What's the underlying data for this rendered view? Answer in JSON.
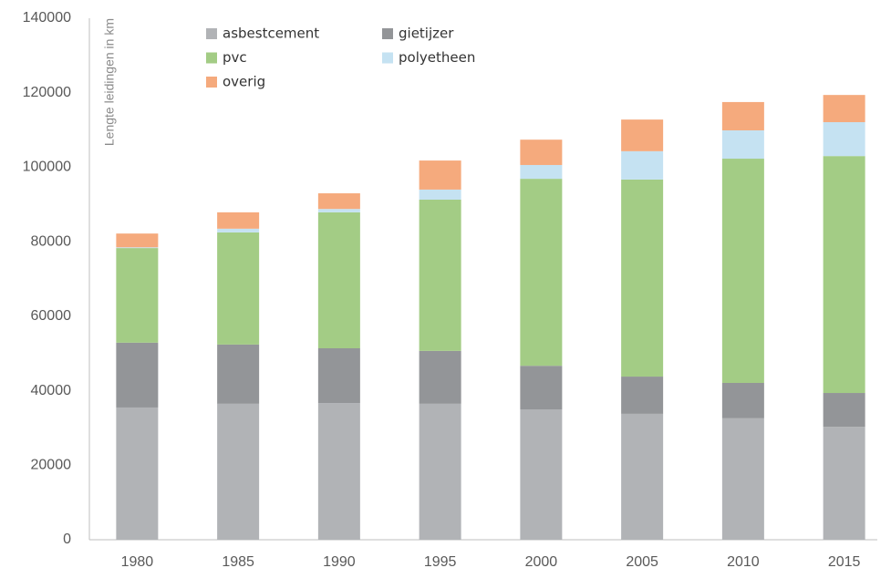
{
  "chart_data": {
    "type": "stacked_bar",
    "ylabel": "Lengte leidingen in km",
    "categories": [
      "1980",
      "1985",
      "1990",
      "1995",
      "2000",
      "2005",
      "2010",
      "2015"
    ],
    "series": [
      {
        "name": "asbestcement",
        "color": "#b1b3b6",
        "values": [
          35500,
          36500,
          36700,
          36500,
          35000,
          33800,
          32600,
          30300
        ]
      },
      {
        "name": "gietijzer",
        "color": "#939598",
        "values": [
          17400,
          15900,
          14700,
          14200,
          11700,
          10000,
          9500,
          9100
        ]
      },
      {
        "name": "pvc",
        "color": "#a3cc85",
        "values": [
          25400,
          30100,
          36500,
          40600,
          50200,
          52900,
          60200,
          63600
        ]
      },
      {
        "name": "polyetheen",
        "color": "#c5e2f2",
        "values": [
          200,
          1000,
          900,
          2700,
          3700,
          7600,
          7600,
          9100
        ]
      },
      {
        "name": "overig",
        "color": "#f5aa7d",
        "values": [
          3700,
          4400,
          4200,
          7800,
          6800,
          8500,
          7600,
          7300
        ]
      }
    ],
    "ylim": [
      0,
      140000
    ],
    "yticks": [
      0,
      20000,
      40000,
      60000,
      80000,
      100000,
      120000,
      140000
    ],
    "grid": false
  }
}
